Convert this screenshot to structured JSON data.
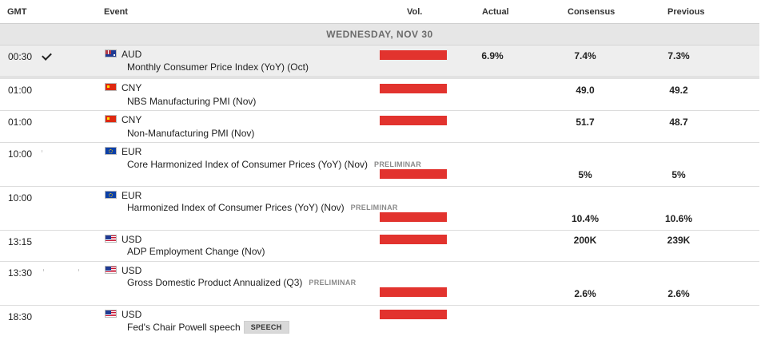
{
  "header": {
    "gmt": "GMT",
    "event": "Event",
    "vol": "Vol.",
    "actual": "Actual",
    "consensus": "Consensus",
    "previous": "Previous"
  },
  "day_label": "WEDNESDAY, NOV 30",
  "colors": {
    "volatility_bar": "#e2332e",
    "day_band": "#e6e6e6",
    "highlight_row": "#eeeeee"
  },
  "rows": [
    {
      "time": "00:30",
      "released": true,
      "flag": "australia-flag-icon",
      "currency": "AUD",
      "event": "Monthly Consumer Price Index (YoY) (Oct)",
      "tag": "",
      "volatility": "high",
      "actual": "6.9%",
      "consensus": "7.4%",
      "previous": "7.3%"
    },
    {
      "time": "01:00",
      "released": false,
      "flag": "china-flag-icon",
      "currency": "CNY",
      "event": "NBS Manufacturing PMI (Nov)",
      "tag": "",
      "volatility": "high",
      "actual": "",
      "consensus": "49.0",
      "previous": "49.2"
    },
    {
      "time": "01:00",
      "released": false,
      "flag": "china-flag-icon",
      "currency": "CNY",
      "event": "Non-Manufacturing PMI (Nov)",
      "tag": "",
      "volatility": "high",
      "actual": "",
      "consensus": "51.7",
      "previous": "48.7"
    },
    {
      "time": "10:00",
      "released": false,
      "flag": "eu-flag-icon",
      "currency": "EUR",
      "event": "Core Harmonized Index of Consumer Prices (YoY) (Nov)",
      "tag": "PRELIMINAR",
      "volatility": "high",
      "actual": "",
      "consensus": "5%",
      "previous": "5%"
    },
    {
      "time": "10:00",
      "released": false,
      "flag": "eu-flag-icon",
      "currency": "EUR",
      "event": "Harmonized Index of Consumer Prices (YoY) (Nov)",
      "tag": "PRELIMINAR",
      "volatility": "high",
      "actual": "",
      "consensus": "10.4%",
      "previous": "10.6%"
    },
    {
      "time": "13:15",
      "released": false,
      "flag": "us-flag-icon",
      "currency": "USD",
      "event": "ADP Employment Change (Nov)",
      "tag": "",
      "volatility": "high",
      "actual": "",
      "consensus": "200K",
      "previous": "239K"
    },
    {
      "time": "13:30",
      "released": false,
      "flag": "us-flag-icon",
      "currency": "USD",
      "event": "Gross Domestic Product Annualized (Q3)",
      "tag": "PRELIMINAR",
      "volatility": "high",
      "actual": "",
      "consensus": "2.6%",
      "previous": "2.6%"
    },
    {
      "time": "18:30",
      "released": false,
      "flag": "us-flag-icon",
      "currency": "USD",
      "event": "Fed's Chair Powell speech",
      "tag": "SPEECH",
      "volatility": "high",
      "actual": "",
      "consensus": "",
      "previous": ""
    }
  ]
}
